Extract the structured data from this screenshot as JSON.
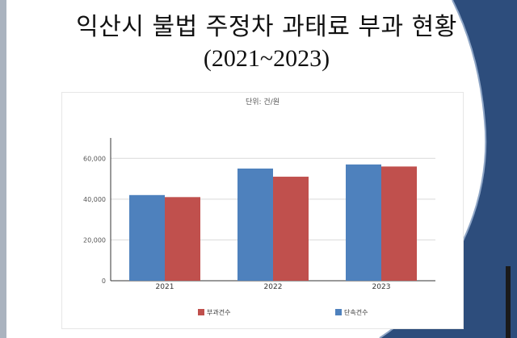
{
  "title": {
    "line1": "익산시 불법 주정차 과태료 부과 현황",
    "line2": "(2021~2023)"
  },
  "colors": {
    "background": "#ffffff",
    "dark_band": "#2d4d7c",
    "left_strip": "#aab3bf",
    "series_blue": "#4e81bd",
    "series_red": "#c0504d"
  },
  "chart_data": {
    "type": "bar",
    "unit_label": "단위: 건/원",
    "categories": [
      "2021",
      "2022",
      "2023"
    ],
    "series": [
      {
        "name": "단속건수",
        "color": "#4e81bd",
        "values": [
          42000,
          55000,
          57000
        ]
      },
      {
        "name": "부과건수",
        "color": "#c0504d",
        "values": [
          41000,
          51000,
          56000
        ]
      }
    ],
    "yticks": [
      "0",
      "20,000",
      "40,000",
      "60,000"
    ],
    "ytick_values": [
      0,
      20000,
      40000,
      60000
    ],
    "ylim": [
      0,
      70000
    ],
    "grid": true,
    "legend_position": "bottom",
    "legend": [
      {
        "name": "부과건수",
        "color": "#c0504d"
      },
      {
        "name": "단속건수",
        "color": "#4e81bd"
      }
    ]
  }
}
